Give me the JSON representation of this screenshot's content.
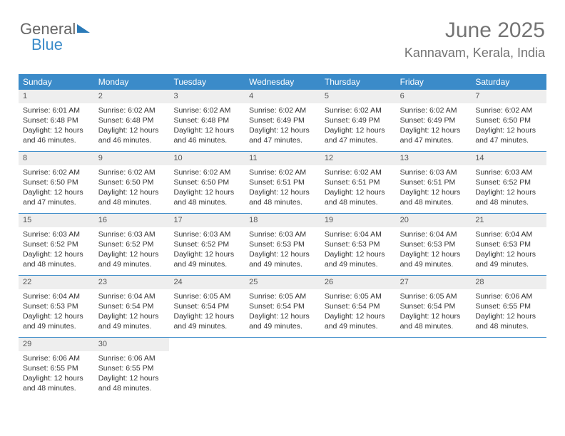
{
  "logo": {
    "text1": "General",
    "text2": "Blue"
  },
  "header": {
    "title": "June 2025",
    "location": "Kannavam, Kerala, India"
  },
  "colors": {
    "header_bg": "#3b8bc9",
    "header_text": "#ffffff",
    "daynum_bg": "#eeeeee",
    "border": "#3b8bc9",
    "text": "#333333",
    "title_color": "#747474"
  },
  "weekdays": [
    "Sunday",
    "Monday",
    "Tuesday",
    "Wednesday",
    "Thursday",
    "Friday",
    "Saturday"
  ],
  "weeks": [
    [
      {
        "n": "1",
        "sr": "Sunrise: 6:01 AM",
        "ss": "Sunset: 6:48 PM",
        "d1": "Daylight: 12 hours",
        "d2": "and 46 minutes."
      },
      {
        "n": "2",
        "sr": "Sunrise: 6:02 AM",
        "ss": "Sunset: 6:48 PM",
        "d1": "Daylight: 12 hours",
        "d2": "and 46 minutes."
      },
      {
        "n": "3",
        "sr": "Sunrise: 6:02 AM",
        "ss": "Sunset: 6:48 PM",
        "d1": "Daylight: 12 hours",
        "d2": "and 46 minutes."
      },
      {
        "n": "4",
        "sr": "Sunrise: 6:02 AM",
        "ss": "Sunset: 6:49 PM",
        "d1": "Daylight: 12 hours",
        "d2": "and 47 minutes."
      },
      {
        "n": "5",
        "sr": "Sunrise: 6:02 AM",
        "ss": "Sunset: 6:49 PM",
        "d1": "Daylight: 12 hours",
        "d2": "and 47 minutes."
      },
      {
        "n": "6",
        "sr": "Sunrise: 6:02 AM",
        "ss": "Sunset: 6:49 PM",
        "d1": "Daylight: 12 hours",
        "d2": "and 47 minutes."
      },
      {
        "n": "7",
        "sr": "Sunrise: 6:02 AM",
        "ss": "Sunset: 6:50 PM",
        "d1": "Daylight: 12 hours",
        "d2": "and 47 minutes."
      }
    ],
    [
      {
        "n": "8",
        "sr": "Sunrise: 6:02 AM",
        "ss": "Sunset: 6:50 PM",
        "d1": "Daylight: 12 hours",
        "d2": "and 47 minutes."
      },
      {
        "n": "9",
        "sr": "Sunrise: 6:02 AM",
        "ss": "Sunset: 6:50 PM",
        "d1": "Daylight: 12 hours",
        "d2": "and 48 minutes."
      },
      {
        "n": "10",
        "sr": "Sunrise: 6:02 AM",
        "ss": "Sunset: 6:50 PM",
        "d1": "Daylight: 12 hours",
        "d2": "and 48 minutes."
      },
      {
        "n": "11",
        "sr": "Sunrise: 6:02 AM",
        "ss": "Sunset: 6:51 PM",
        "d1": "Daylight: 12 hours",
        "d2": "and 48 minutes."
      },
      {
        "n": "12",
        "sr": "Sunrise: 6:02 AM",
        "ss": "Sunset: 6:51 PM",
        "d1": "Daylight: 12 hours",
        "d2": "and 48 minutes."
      },
      {
        "n": "13",
        "sr": "Sunrise: 6:03 AM",
        "ss": "Sunset: 6:51 PM",
        "d1": "Daylight: 12 hours",
        "d2": "and 48 minutes."
      },
      {
        "n": "14",
        "sr": "Sunrise: 6:03 AM",
        "ss": "Sunset: 6:52 PM",
        "d1": "Daylight: 12 hours",
        "d2": "and 48 minutes."
      }
    ],
    [
      {
        "n": "15",
        "sr": "Sunrise: 6:03 AM",
        "ss": "Sunset: 6:52 PM",
        "d1": "Daylight: 12 hours",
        "d2": "and 48 minutes."
      },
      {
        "n": "16",
        "sr": "Sunrise: 6:03 AM",
        "ss": "Sunset: 6:52 PM",
        "d1": "Daylight: 12 hours",
        "d2": "and 49 minutes."
      },
      {
        "n": "17",
        "sr": "Sunrise: 6:03 AM",
        "ss": "Sunset: 6:52 PM",
        "d1": "Daylight: 12 hours",
        "d2": "and 49 minutes."
      },
      {
        "n": "18",
        "sr": "Sunrise: 6:03 AM",
        "ss": "Sunset: 6:53 PM",
        "d1": "Daylight: 12 hours",
        "d2": "and 49 minutes."
      },
      {
        "n": "19",
        "sr": "Sunrise: 6:04 AM",
        "ss": "Sunset: 6:53 PM",
        "d1": "Daylight: 12 hours",
        "d2": "and 49 minutes."
      },
      {
        "n": "20",
        "sr": "Sunrise: 6:04 AM",
        "ss": "Sunset: 6:53 PM",
        "d1": "Daylight: 12 hours",
        "d2": "and 49 minutes."
      },
      {
        "n": "21",
        "sr": "Sunrise: 6:04 AM",
        "ss": "Sunset: 6:53 PM",
        "d1": "Daylight: 12 hours",
        "d2": "and 49 minutes."
      }
    ],
    [
      {
        "n": "22",
        "sr": "Sunrise: 6:04 AM",
        "ss": "Sunset: 6:53 PM",
        "d1": "Daylight: 12 hours",
        "d2": "and 49 minutes."
      },
      {
        "n": "23",
        "sr": "Sunrise: 6:04 AM",
        "ss": "Sunset: 6:54 PM",
        "d1": "Daylight: 12 hours",
        "d2": "and 49 minutes."
      },
      {
        "n": "24",
        "sr": "Sunrise: 6:05 AM",
        "ss": "Sunset: 6:54 PM",
        "d1": "Daylight: 12 hours",
        "d2": "and 49 minutes."
      },
      {
        "n": "25",
        "sr": "Sunrise: 6:05 AM",
        "ss": "Sunset: 6:54 PM",
        "d1": "Daylight: 12 hours",
        "d2": "and 49 minutes."
      },
      {
        "n": "26",
        "sr": "Sunrise: 6:05 AM",
        "ss": "Sunset: 6:54 PM",
        "d1": "Daylight: 12 hours",
        "d2": "and 49 minutes."
      },
      {
        "n": "27",
        "sr": "Sunrise: 6:05 AM",
        "ss": "Sunset: 6:54 PM",
        "d1": "Daylight: 12 hours",
        "d2": "and 48 minutes."
      },
      {
        "n": "28",
        "sr": "Sunrise: 6:06 AM",
        "ss": "Sunset: 6:55 PM",
        "d1": "Daylight: 12 hours",
        "d2": "and 48 minutes."
      }
    ],
    [
      {
        "n": "29",
        "sr": "Sunrise: 6:06 AM",
        "ss": "Sunset: 6:55 PM",
        "d1": "Daylight: 12 hours",
        "d2": "and 48 minutes."
      },
      {
        "n": "30",
        "sr": "Sunrise: 6:06 AM",
        "ss": "Sunset: 6:55 PM",
        "d1": "Daylight: 12 hours",
        "d2": "and 48 minutes."
      },
      null,
      null,
      null,
      null,
      null
    ]
  ]
}
